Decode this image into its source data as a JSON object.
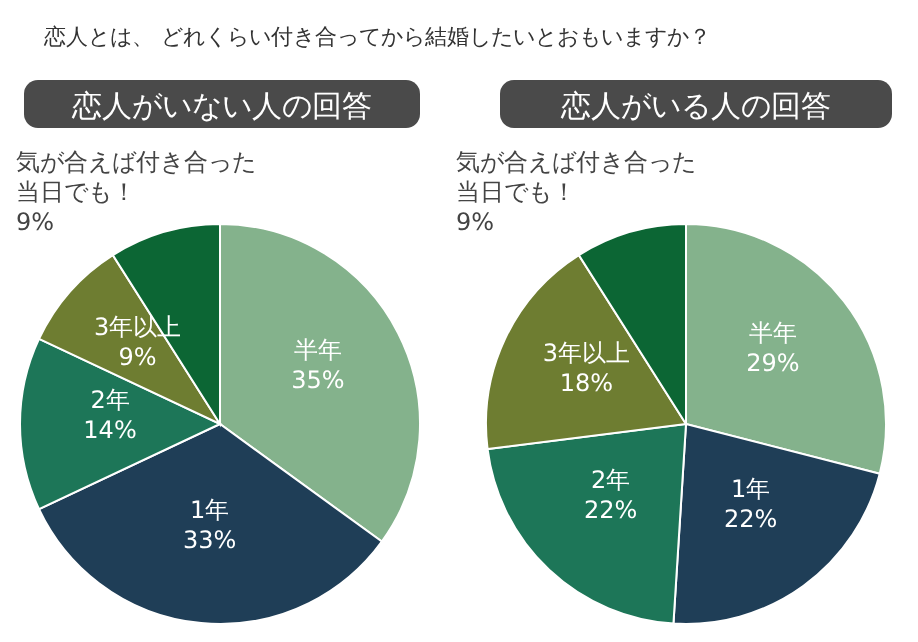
{
  "chart_data": [
    {
      "type": "pie",
      "title": "恋人がいない人の回答",
      "annotations": [
        "恋人とは、 どれくらい付き合ってから結婚したいとおもいますか？"
      ],
      "categories": [
        "半年",
        "1年",
        "2年",
        "3年以上",
        "気が合えば付き合った当日でも！"
      ],
      "values": [
        35,
        33,
        14,
        9,
        9
      ],
      "value_labels": [
        "35%",
        "33%",
        "14%",
        "9%",
        "9%"
      ],
      "colors": [
        "#84b28c",
        "#1f3e57",
        "#1d7658",
        "#6e7d31",
        "#0c6634"
      ]
    },
    {
      "type": "pie",
      "title": "恋人がいる人の回答",
      "categories": [
        "半年",
        "1年",
        "2年",
        "3年以上",
        "気が合えば付き合った当日でも！"
      ],
      "values": [
        29,
        22,
        22,
        18,
        9
      ],
      "value_labels": [
        "29%",
        "22%",
        "22%",
        "18%",
        "9%"
      ],
      "colors": [
        "#84b28c",
        "#1f3e57",
        "#1d7658",
        "#6e7d31",
        "#0c6634"
      ]
    }
  ]
}
